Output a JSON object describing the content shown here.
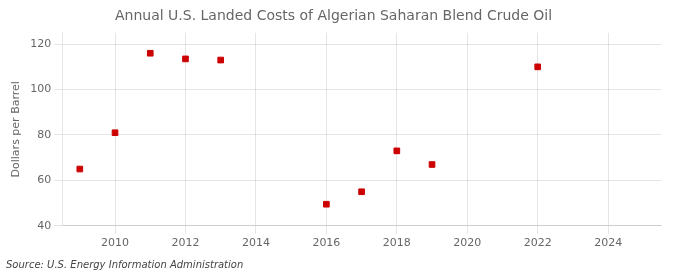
{
  "chart_data": {
    "type": "scatter",
    "title": "Annual U.S. Landed Costs of Algerian Saharan Blend Crude Oil",
    "ylabel": "Dollars per Barrel",
    "source": "Source: U.S. Energy Information Administration",
    "x": [
      2009,
      2010,
      2011,
      2012,
      2013,
      2016,
      2017,
      2018,
      2019,
      2022
    ],
    "values": [
      65.0,
      81.0,
      116.0,
      113.5,
      113.0,
      49.5,
      55.0,
      73.0,
      67.0,
      110.0
    ],
    "color": "#cc0000",
    "marker": "square",
    "xlim": [
      2008.5,
      2025.5
    ],
    "xticks": [
      2010,
      2012,
      2014,
      2016,
      2018,
      2020,
      2022,
      2024
    ],
    "ylim": [
      40,
      125
    ],
    "yticks": [
      40,
      60,
      80,
      100,
      120
    ],
    "grid": true
  }
}
